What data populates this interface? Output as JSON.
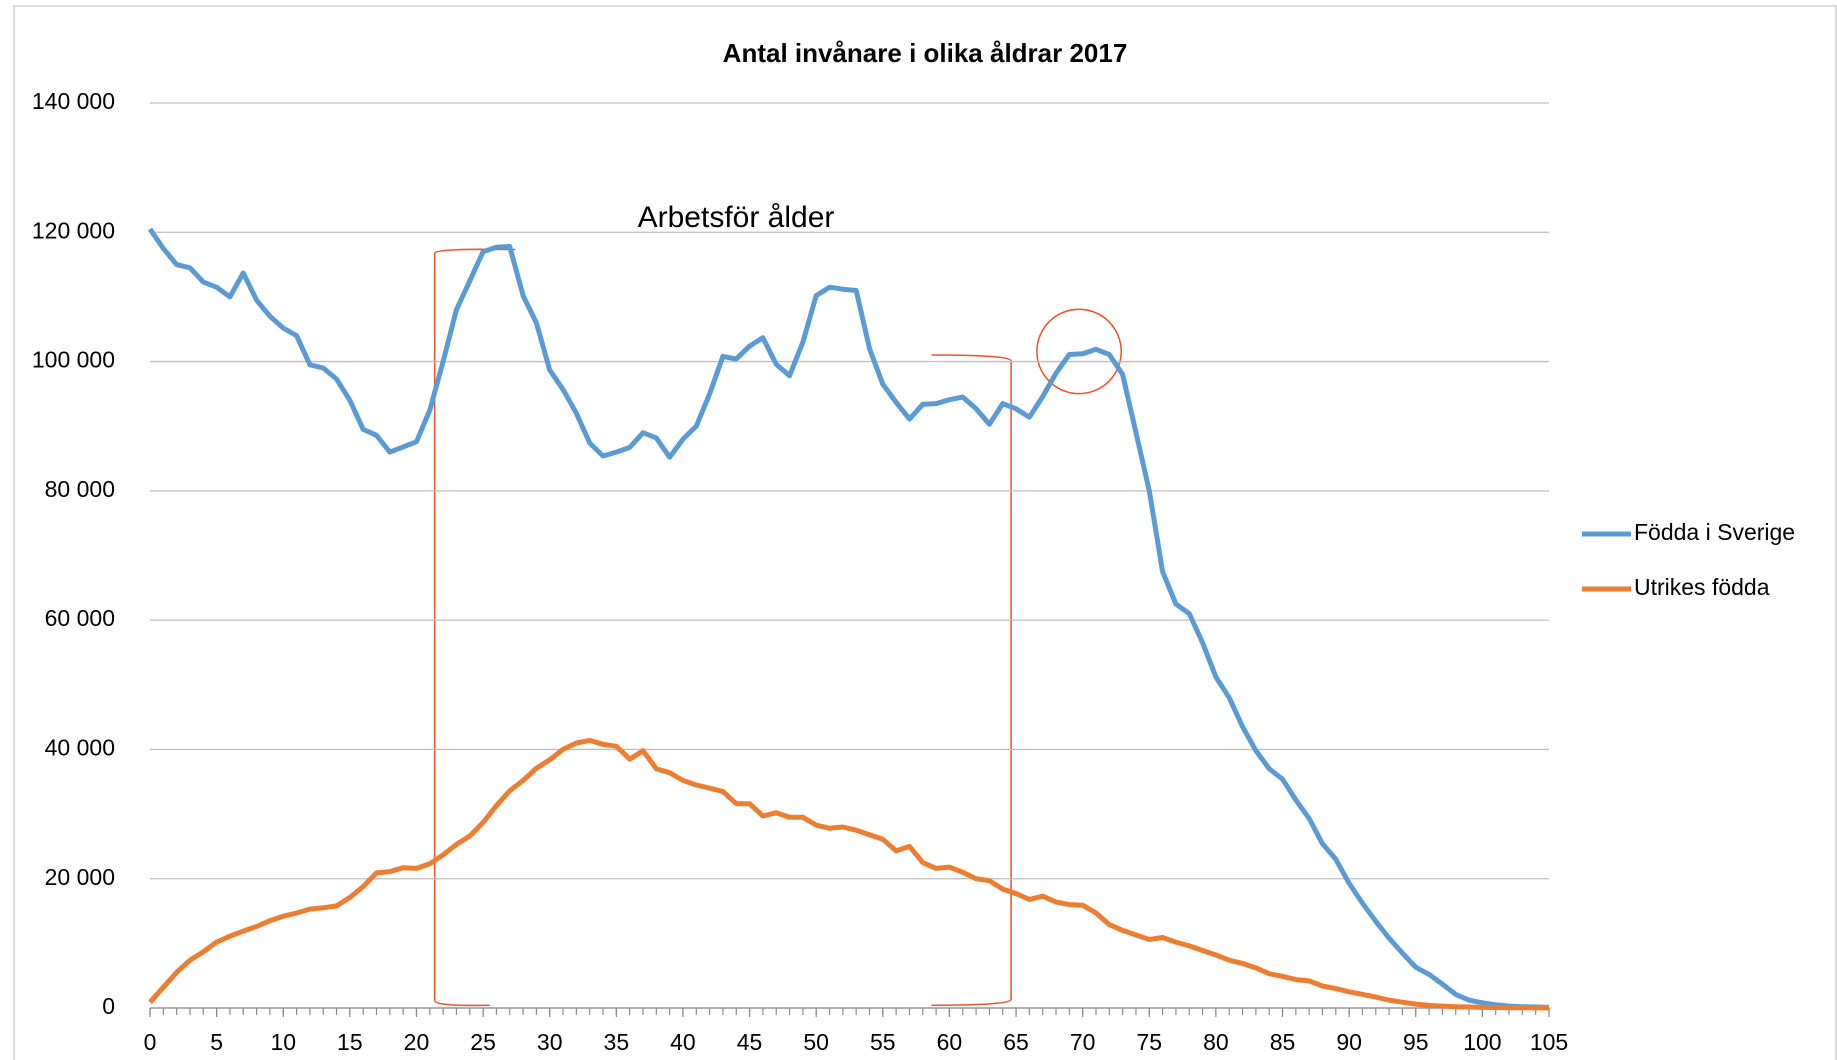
{
  "chart_data": {
    "type": "line",
    "title": "Antal invånare i olika åldrar 2017",
    "annotations": [
      "Arbetsför ålder"
    ],
    "x": [
      0,
      1,
      2,
      3,
      4,
      5,
      6,
      7,
      8,
      9,
      10,
      11,
      12,
      13,
      14,
      15,
      16,
      17,
      18,
      19,
      20,
      21,
      22,
      23,
      24,
      25,
      26,
      27,
      28,
      29,
      30,
      31,
      32,
      33,
      34,
      35,
      36,
      37,
      38,
      39,
      40,
      41,
      42,
      43,
      44,
      45,
      46,
      47,
      48,
      49,
      50,
      51,
      52,
      53,
      54,
      55,
      56,
      57,
      58,
      59,
      60,
      61,
      62,
      63,
      64,
      65,
      66,
      67,
      68,
      69,
      70,
      71,
      72,
      73,
      74,
      75,
      76,
      77,
      78,
      79,
      80,
      81,
      82,
      83,
      84,
      85,
      86,
      87,
      88,
      89,
      90,
      91,
      92,
      93,
      94,
      95,
      96,
      97,
      98,
      99,
      100,
      101,
      102,
      103,
      104,
      105
    ],
    "series": [
      {
        "name": "Födda i Sverige",
        "color": "#5b9bd5",
        "values": [
          120500,
          117500,
          115000,
          114500,
          112300,
          111500,
          110000,
          113700,
          109500,
          107000,
          105200,
          104000,
          99500,
          99000,
          97300,
          94000,
          89500,
          88600,
          86000,
          86800,
          87600,
          92500,
          100000,
          108000,
          112500,
          117000,
          117700,
          117800,
          110200,
          106000,
          98700,
          95700,
          92000,
          87400,
          85400,
          86000,
          86700,
          89000,
          88200,
          85200,
          88000,
          90000,
          95000,
          100800,
          100400,
          102400,
          103700,
          99600,
          97800,
          103000,
          110200,
          111500,
          111200,
          111000,
          102000,
          96500,
          93700,
          91100,
          93400,
          93500,
          94100,
          94500,
          92700,
          90300,
          93500,
          92700,
          91400,
          94600,
          98200,
          101100,
          101200,
          101900,
          101100,
          98000,
          89000,
          80000,
          67500,
          62500,
          61000,
          56500,
          51200,
          48000,
          43500,
          39800,
          37000,
          35400,
          32200,
          29300,
          25400,
          23000,
          19300,
          16200,
          13400,
          10800,
          8500,
          6300,
          5200,
          3700,
          2100,
          1200,
          800,
          500,
          300,
          200,
          150,
          100
        ]
      },
      {
        "name": "Utrikes födda",
        "color": "#ed7d31",
        "values": [
          900,
          3200,
          5500,
          7400,
          8700,
          10200,
          11100,
          11900,
          12600,
          13500,
          14200,
          14700,
          15300,
          15500,
          15800,
          17100,
          18800,
          20900,
          21100,
          21700,
          21600,
          22300,
          23700,
          25300,
          26600,
          28700,
          31300,
          33600,
          35200,
          37100,
          38400,
          40000,
          41000,
          41400,
          40800,
          40500,
          38500,
          39800,
          37000,
          36400,
          35200,
          34500,
          34000,
          33500,
          31600,
          31600,
          29700,
          30200,
          29500,
          29500,
          28300,
          27800,
          28000,
          27500,
          26800,
          26100,
          24300,
          25000,
          22500,
          21600,
          21800,
          21000,
          20000,
          19700,
          18400,
          17700,
          16800,
          17300,
          16400,
          16000,
          15900,
          14700,
          12900,
          12000,
          11300,
          10600,
          10900,
          10200,
          9600,
          8900,
          8200,
          7400,
          6900,
          6200,
          5300,
          4900,
          4400,
          4200,
          3400,
          3000,
          2500,
          2100,
          1700,
          1200,
          900,
          600,
          400,
          300,
          200,
          150,
          100,
          80,
          50,
          30,
          20,
          10
        ]
      }
    ],
    "xlim": [
      0,
      105
    ],
    "xticks": [
      0,
      5,
      10,
      15,
      20,
      25,
      30,
      35,
      40,
      45,
      50,
      55,
      60,
      65,
      70,
      75,
      80,
      85,
      90,
      95,
      100,
      105
    ],
    "ylim": [
      0,
      140000
    ],
    "yticks": [
      0,
      {
        "value": 20000,
        "label": "20 000"
      },
      {
        "value": 40000,
        "label": "40 000"
      },
      {
        "value": 60000,
        "label": "60 000"
      },
      {
        "value": 80000,
        "label": "80 000"
      },
      {
        "value": 100000,
        "label": "100 000"
      },
      {
        "value": 120000,
        "label": "120 000"
      },
      {
        "value": 140000,
        "label": "140 000"
      }
    ],
    "grid": true,
    "legend": "right"
  }
}
